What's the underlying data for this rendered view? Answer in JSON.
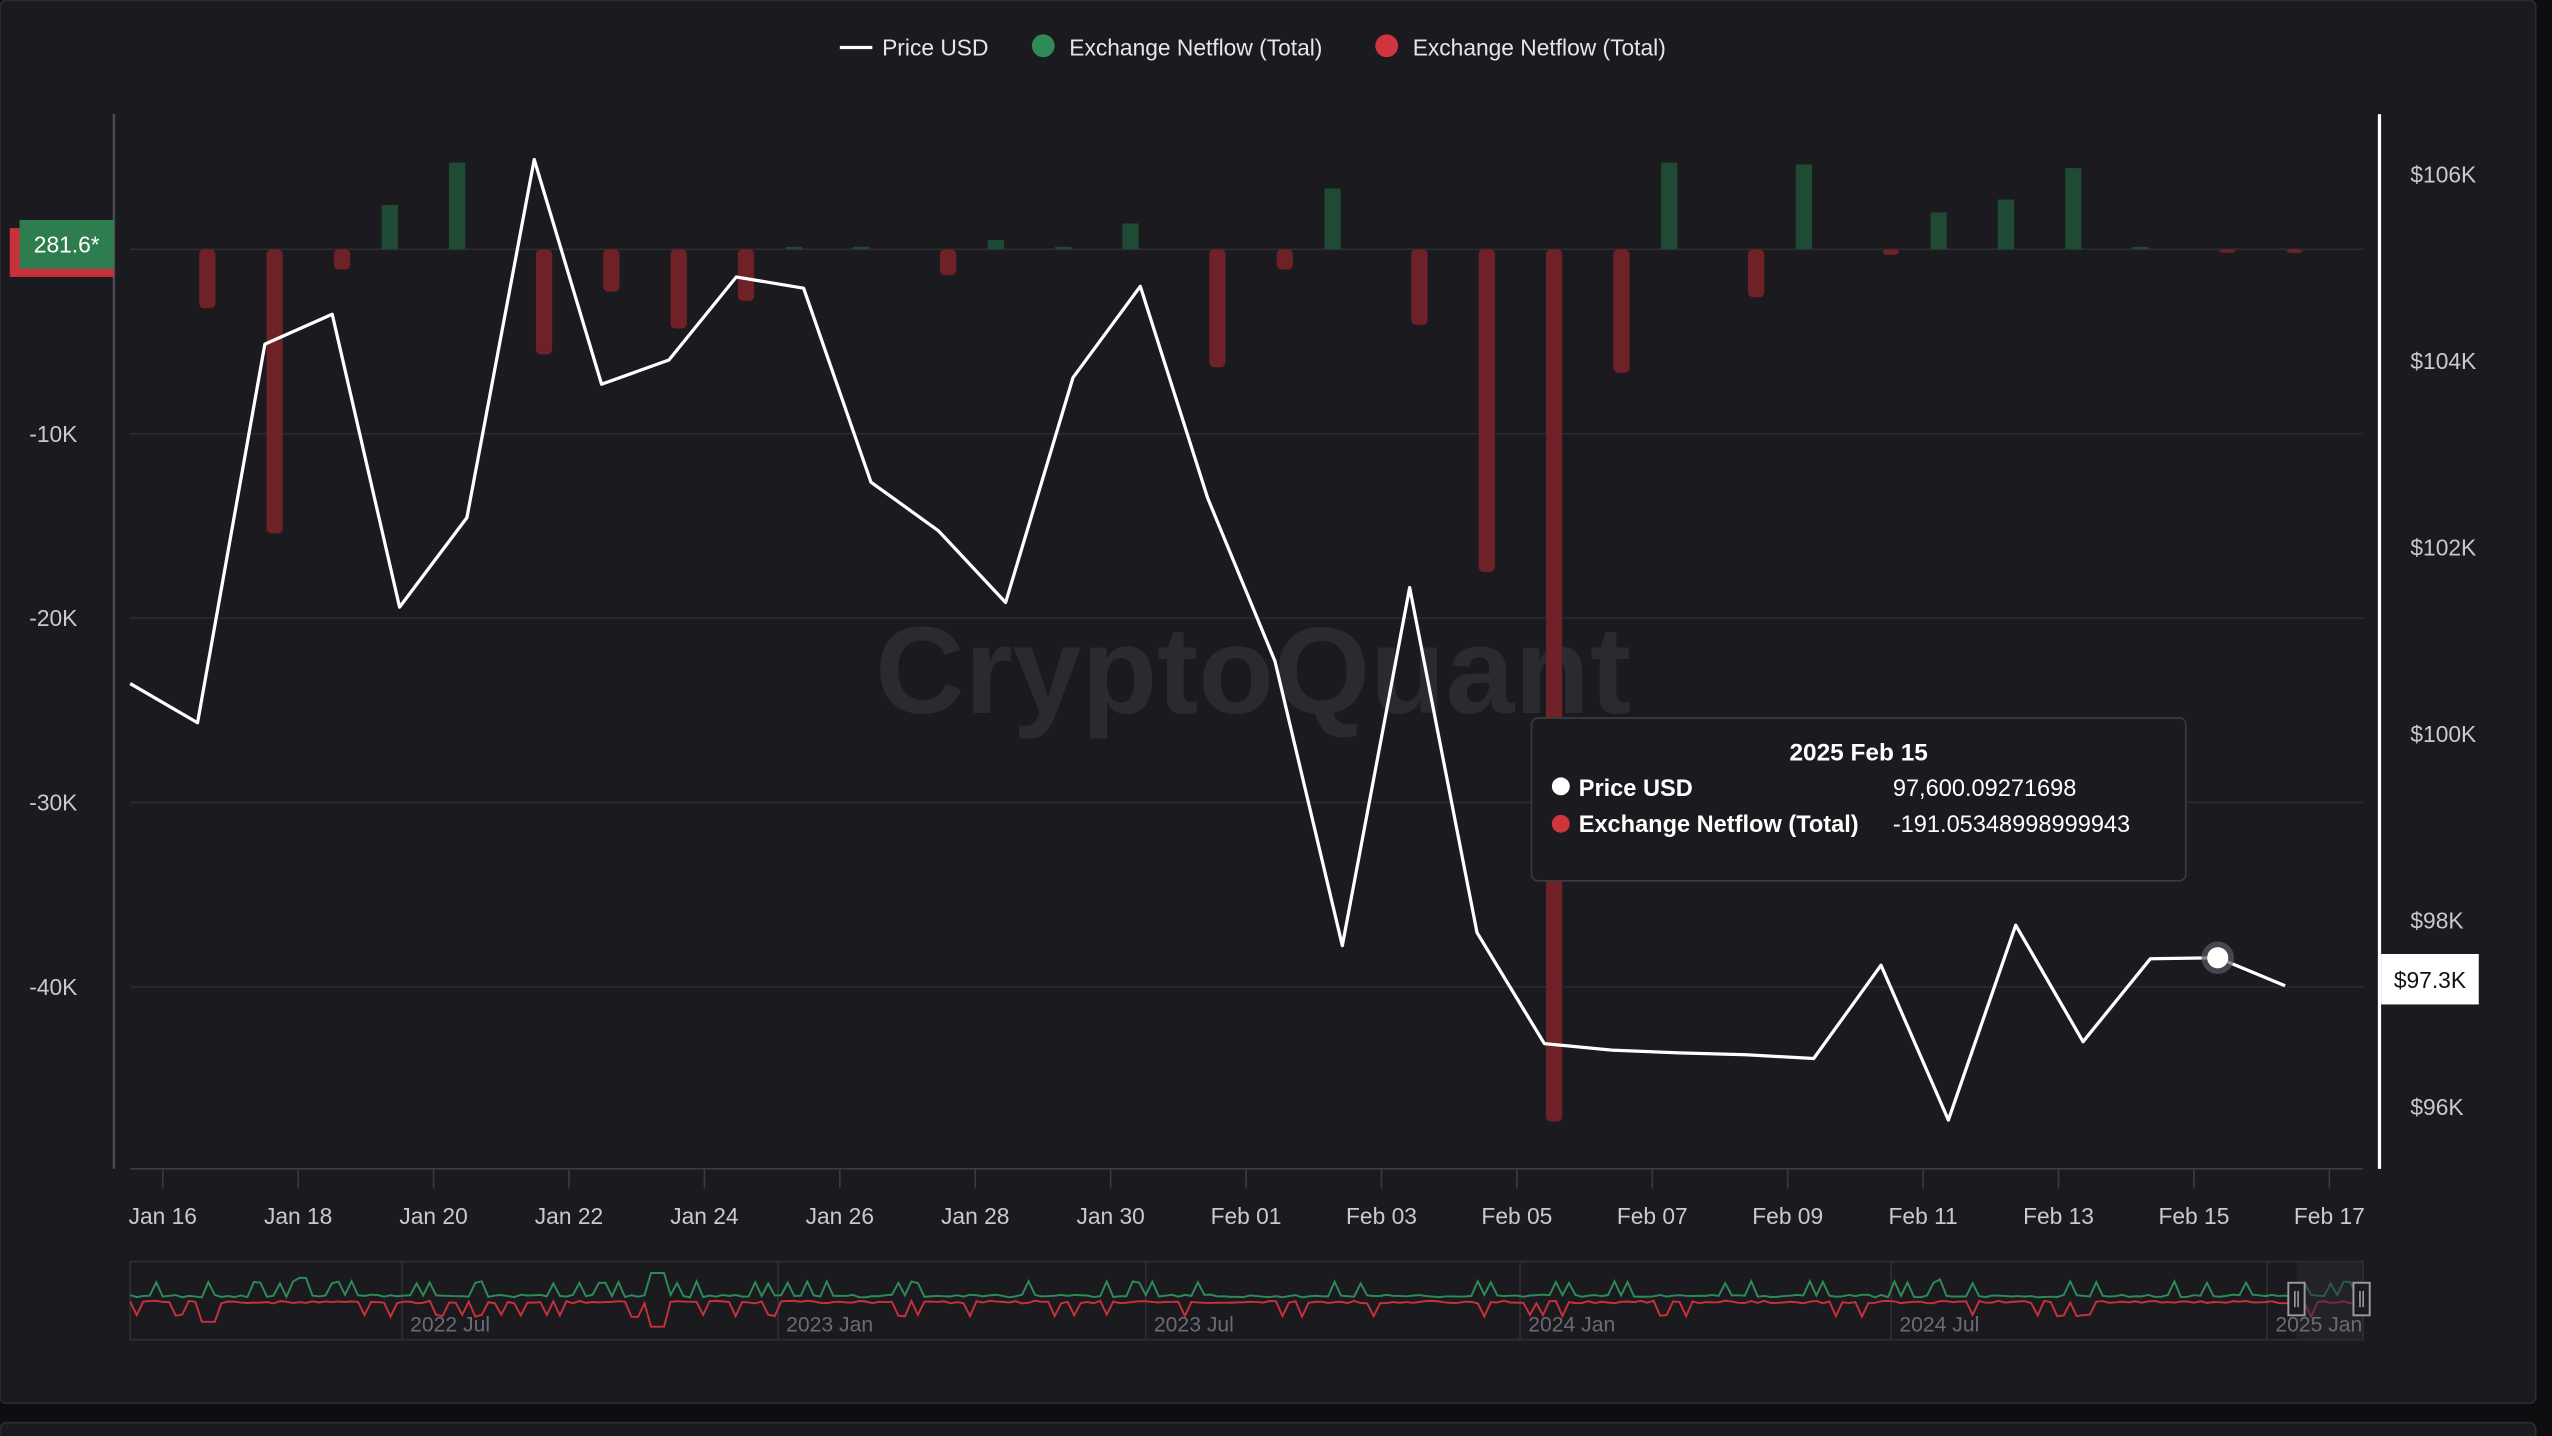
{
  "legend": [
    {
      "label": "Price USD",
      "color": "#ffffff",
      "marker": "line"
    },
    {
      "label": "Exchange Netflow (Total)",
      "color": "#2e8b57",
      "marker": "dot"
    },
    {
      "label": "Exchange Netflow (Total)",
      "color": "#d0343c",
      "marker": "dot"
    }
  ],
  "watermark": "CryptoQuant",
  "left_badge": "281.6*",
  "right_badge": "$97.3K",
  "tooltip": {
    "title": "2025 Feb 15",
    "rows": [
      {
        "label": "Price USD",
        "value": "97,600.09271698",
        "color": "#ffffff"
      },
      {
        "label": "Exchange Netflow (Total)",
        "value": "-191.05348998999943",
        "color": "#d0343c"
      }
    ]
  },
  "navigator_labels": [
    "2022 Jul",
    "2023 Jan",
    "2023 Jul",
    "2024 Jan",
    "2024 Jul",
    "2025 Jan"
  ],
  "chart_data": {
    "type": "bar+line",
    "x_tick_labels": [
      "Jan 16",
      "Jan 18",
      "Jan 20",
      "Jan 22",
      "Jan 24",
      "Jan 26",
      "Jan 28",
      "Jan 30",
      "Feb 01",
      "Feb 03",
      "Feb 05",
      "Feb 07",
      "Feb 09",
      "Feb 11",
      "Feb 13",
      "Feb 15",
      "Feb 17"
    ],
    "left_axis": {
      "ticks": [
        "-10K",
        "-20K",
        "-30K",
        "-40K"
      ],
      "tick_values": [
        -10000,
        -20000,
        -30000,
        -40000
      ],
      "range": [
        -50000,
        7000
      ]
    },
    "right_axis": {
      "ticks": [
        "$106K",
        "$104K",
        "$102K",
        "$100K",
        "$98K",
        "$96K"
      ],
      "tick_values": [
        106000,
        104000,
        102000,
        100000,
        98000,
        96000
      ],
      "range": [
        95350,
        106850
      ]
    },
    "grid": true,
    "legend_position": "top-center",
    "dates": [
      "Jan 15",
      "Jan 16",
      "Jan 17",
      "Jan 18",
      "Jan 19",
      "Jan 20",
      "Jan 21",
      "Jan 22",
      "Jan 23",
      "Jan 24",
      "Jan 25",
      "Jan 26",
      "Jan 27",
      "Jan 28",
      "Jan 29",
      "Jan 30",
      "Jan 31",
      "Feb 01",
      "Feb 02",
      "Feb 03",
      "Feb 04",
      "Feb 05",
      "Feb 06",
      "Feb 07",
      "Feb 08",
      "Feb 09",
      "Feb 10",
      "Feb 11",
      "Feb 12",
      "Feb 13",
      "Feb 14",
      "Feb 15",
      "Feb 16"
    ],
    "series": [
      {
        "name": "Price USD",
        "type": "line",
        "axis": "right",
        "color": "#ffffff",
        "values": [
          100540,
          100120,
          104180,
          104500,
          101360,
          102320,
          106160,
          103750,
          104010,
          104900,
          104780,
          102700,
          102180,
          101410,
          103820,
          104800,
          102530,
          100780,
          97730,
          101570,
          97870,
          96680,
          96610,
          96580,
          96560,
          96520,
          97520,
          95860,
          97950,
          96700,
          97590,
          97600.09,
          97300
        ]
      },
      {
        "name": "Exchange Netflow (Total)",
        "type": "bar",
        "axis": "left",
        "color_positive": "#1f4a33",
        "color_negative": "#6e2228",
        "values": [
          null,
          -3200,
          -15400,
          -1100,
          2400,
          4700,
          -5700,
          -2300,
          -4300,
          -2800,
          100,
          100,
          -1400,
          500,
          0,
          1400,
          -6400,
          -1100,
          3300,
          -4100,
          -17500,
          -47300,
          -6700,
          4700,
          -2600,
          4600,
          -300,
          2000,
          2700,
          4400,
          100,
          -191.05,
          -200
        ]
      }
    ]
  }
}
